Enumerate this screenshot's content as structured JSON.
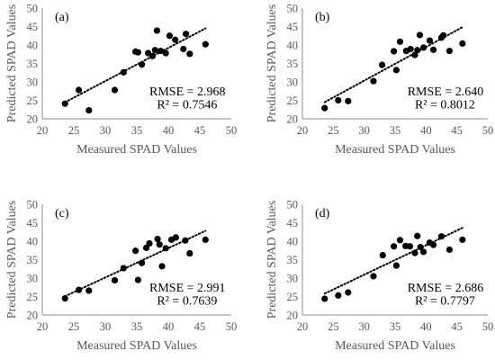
{
  "chart_data": [
    {
      "type": "scatter",
      "panel_label": "(a)",
      "xlabel": "Measured SPAD Values",
      "ylabel": "Predicted SPAD Values",
      "xlim": [
        20,
        50
      ],
      "ylim": [
        20,
        50
      ],
      "xticks": [
        "20",
        "25",
        "30",
        "35",
        "40",
        "45",
        "50"
      ],
      "yticks": [
        "20",
        "25",
        "30",
        "35",
        "40",
        "45",
        "50"
      ],
      "grid": false,
      "trendline": "dotted linear fit",
      "rmse_text": "RMSE = 2.968",
      "r2_text": "R² = 0.7546",
      "points": [
        [
          23.6,
          24.1
        ],
        [
          25.8,
          27.8
        ],
        [
          27.4,
          22.3
        ],
        [
          31.5,
          27.8
        ],
        [
          32.9,
          32.6
        ],
        [
          34.8,
          38.2
        ],
        [
          35.2,
          38.0
        ],
        [
          35.8,
          34.7
        ],
        [
          36.8,
          37.8
        ],
        [
          37.5,
          37.0
        ],
        [
          37.9,
          38.6
        ],
        [
          38.2,
          43.9
        ],
        [
          38.8,
          38.4
        ],
        [
          39.6,
          37.8
        ],
        [
          40.2,
          42.5
        ],
        [
          41.1,
          41.4
        ],
        [
          42.4,
          38.9
        ],
        [
          42.8,
          43.0
        ],
        [
          43.4,
          37.6
        ],
        [
          45.9,
          40.2
        ]
      ]
    },
    {
      "type": "scatter",
      "panel_label": "(b)",
      "xlabel": "Measured SPAD Values",
      "ylabel": "Predicted SPAD Values",
      "xlim": [
        20,
        50
      ],
      "ylim": [
        20,
        50
      ],
      "xticks": [
        "20",
        "25",
        "30",
        "35",
        "40",
        "45",
        "50"
      ],
      "yticks": [
        "20",
        "25",
        "30",
        "35",
        "40",
        "45",
        "50"
      ],
      "grid": false,
      "trendline": "dotted linear fit",
      "rmse_text": "RMSE = 2.640",
      "r2_text": "R² = 0.8012",
      "points": [
        [
          23.6,
          22.9
        ],
        [
          25.8,
          25.0
        ],
        [
          27.4,
          24.8
        ],
        [
          31.5,
          30.2
        ],
        [
          32.9,
          34.6
        ],
        [
          34.8,
          38.3
        ],
        [
          35.2,
          33.2
        ],
        [
          35.8,
          40.9
        ],
        [
          36.8,
          38.4
        ],
        [
          37.5,
          38.9
        ],
        [
          38.2,
          37.3
        ],
        [
          38.6,
          38.6
        ],
        [
          39.0,
          42.7
        ],
        [
          39.6,
          39.3
        ],
        [
          40.6,
          41.2
        ],
        [
          41.2,
          38.7
        ],
        [
          42.5,
          42.0
        ],
        [
          42.8,
          42.6
        ],
        [
          43.8,
          38.4
        ],
        [
          45.9,
          40.4
        ]
      ]
    },
    {
      "type": "scatter",
      "panel_label": "(c)",
      "xlabel": "Measured SPAD Values",
      "ylabel": "Predicted SPAD Values",
      "xlim": [
        20,
        50
      ],
      "ylim": [
        20,
        50
      ],
      "xticks": [
        "20",
        "25",
        "30",
        "35",
        "40",
        "45",
        "50"
      ],
      "yticks": [
        "20",
        "25",
        "30",
        "35",
        "40",
        "45",
        "50"
      ],
      "grid": false,
      "trendline": "dotted linear fit",
      "rmse_text": "RMSE = 2.991",
      "r2_text": "R² = 0.7639",
      "points": [
        [
          23.6,
          24.5
        ],
        [
          25.8,
          26.8
        ],
        [
          27.4,
          26.6
        ],
        [
          31.5,
          29.4
        ],
        [
          32.9,
          32.7
        ],
        [
          34.8,
          37.4
        ],
        [
          35.2,
          29.5
        ],
        [
          35.8,
          34.1
        ],
        [
          36.5,
          38.2
        ],
        [
          37.0,
          39.4
        ],
        [
          38.3,
          40.6
        ],
        [
          38.6,
          39.1
        ],
        [
          39.0,
          33.2
        ],
        [
          39.6,
          38.1
        ],
        [
          40.5,
          40.4
        ],
        [
          41.2,
          41.0
        ],
        [
          42.7,
          40.2
        ],
        [
          43.4,
          36.7
        ],
        [
          45.9,
          40.4
        ]
      ]
    },
    {
      "type": "scatter",
      "panel_label": "(d)",
      "xlabel": "Measured SPAD Values",
      "ylabel": "Predicted SPAD Values",
      "xlim": [
        20,
        50
      ],
      "ylim": [
        20,
        50
      ],
      "xticks": [
        "20",
        "25",
        "30",
        "35",
        "40",
        "45",
        "50"
      ],
      "yticks": [
        "20",
        "25",
        "30",
        "35",
        "40",
        "45",
        "50"
      ],
      "grid": false,
      "trendline": "dotted linear fit",
      "rmse_text": "RMSE = 2.686",
      "r2_text": "R² = 0.7797",
      "points": [
        [
          23.6,
          24.4
        ],
        [
          25.8,
          25.3
        ],
        [
          27.4,
          26.1
        ],
        [
          31.5,
          30.5
        ],
        [
          33.0,
          36.2
        ],
        [
          34.8,
          38.6
        ],
        [
          35.2,
          33.4
        ],
        [
          35.8,
          40.3
        ],
        [
          36.7,
          38.7
        ],
        [
          37.4,
          38.6
        ],
        [
          38.2,
          36.8
        ],
        [
          38.6,
          41.4
        ],
        [
          39.1,
          38.4
        ],
        [
          39.6,
          37.1
        ],
        [
          40.6,
          39.6
        ],
        [
          41.2,
          39.0
        ],
        [
          42.5,
          41.3
        ],
        [
          43.8,
          37.7
        ],
        [
          45.9,
          40.4
        ]
      ]
    }
  ]
}
